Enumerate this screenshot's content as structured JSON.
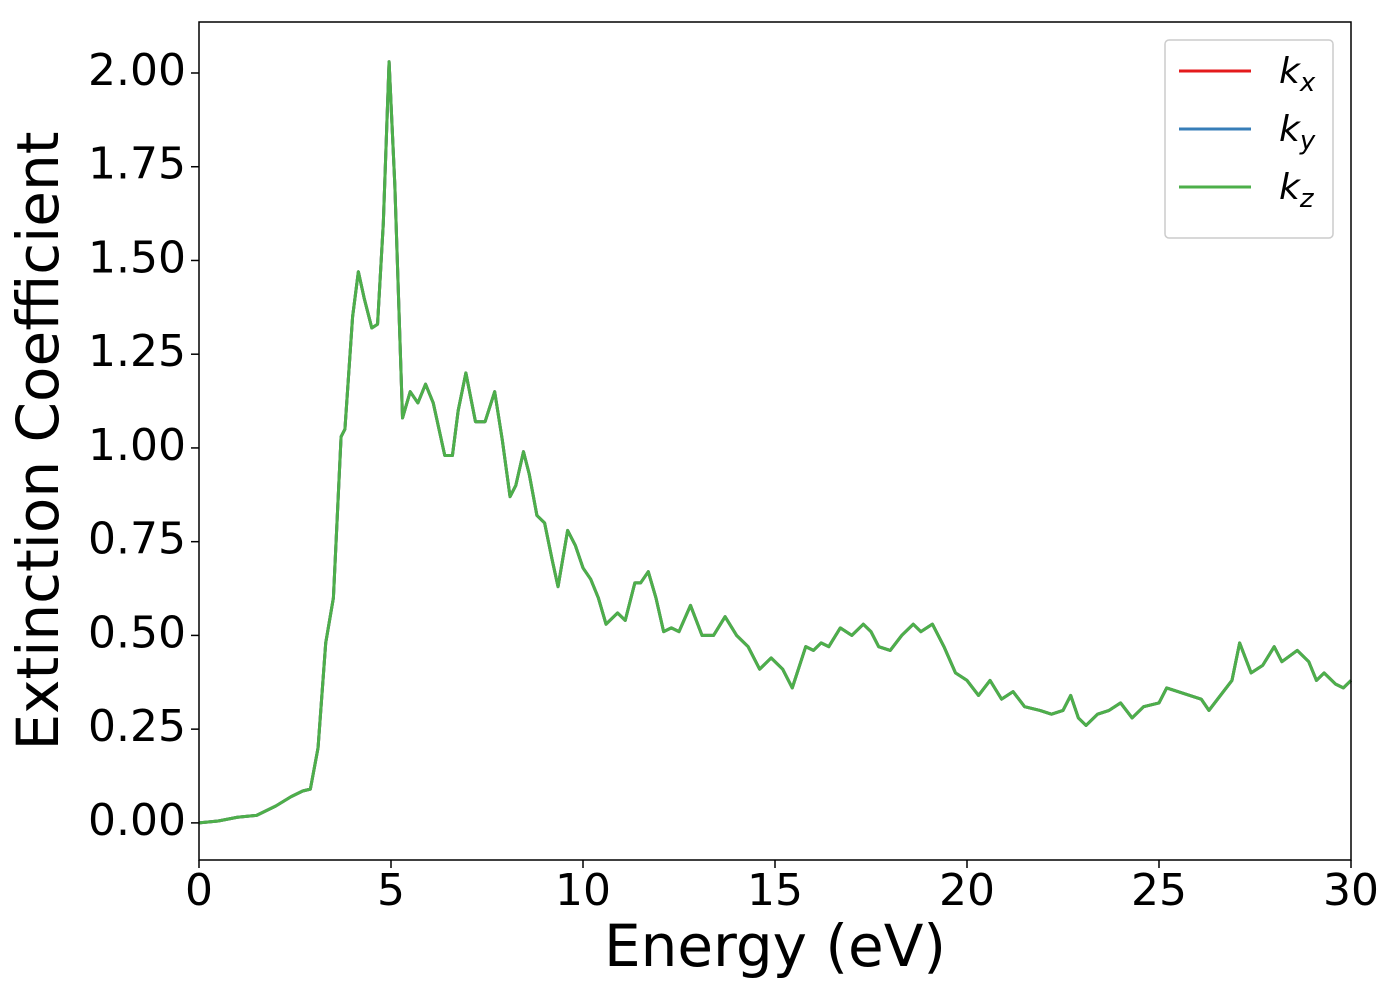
{
  "chart_data": {
    "type": "line",
    "xlabel": "Energy (eV)",
    "ylabel": "Extinction Coefficient",
    "x": [
      0,
      0.5,
      1.0,
      1.5,
      2.0,
      2.4,
      2.7,
      2.9,
      3.1,
      3.3,
      3.5,
      3.7,
      3.8,
      4.0,
      4.15,
      4.3,
      4.5,
      4.65,
      4.8,
      4.95,
      5.1,
      5.3,
      5.5,
      5.7,
      5.9,
      6.1,
      6.4,
      6.6,
      6.75,
      6.95,
      7.2,
      7.45,
      7.7,
      7.9,
      8.1,
      8.25,
      8.45,
      8.6,
      8.8,
      9.0,
      9.2,
      9.35,
      9.6,
      9.8,
      10.0,
      10.2,
      10.4,
      10.6,
      10.9,
      11.1,
      11.35,
      11.5,
      11.7,
      11.9,
      12.1,
      12.3,
      12.5,
      12.8,
      13.1,
      13.4,
      13.7,
      14.0,
      14.3,
      14.6,
      14.9,
      15.2,
      15.45,
      15.8,
      16.0,
      16.2,
      16.4,
      16.7,
      17.0,
      17.3,
      17.5,
      17.7,
      18.0,
      18.3,
      18.6,
      18.8,
      19.1,
      19.4,
      19.7,
      20.0,
      20.3,
      20.6,
      20.9,
      21.2,
      21.5,
      21.9,
      22.2,
      22.5,
      22.7,
      22.9,
      23.1,
      23.4,
      23.7,
      24.0,
      24.3,
      24.6,
      25.0,
      25.2,
      25.5,
      25.8,
      26.1,
      26.3,
      26.6,
      26.9,
      27.1,
      27.4,
      27.7,
      28.0,
      28.2,
      28.6,
      28.9,
      29.1,
      29.3,
      29.6,
      29.8,
      30.0
    ],
    "series": [
      {
        "name": "k_x",
        "color": "#e41a1c",
        "values": [
          0.0,
          0.005,
          0.015,
          0.02,
          0.045,
          0.07,
          0.085,
          0.09,
          0.2,
          0.48,
          0.6,
          1.03,
          1.05,
          1.35,
          1.47,
          1.4,
          1.32,
          1.33,
          1.6,
          2.03,
          1.7,
          1.08,
          1.15,
          1.12,
          1.17,
          1.12,
          0.98,
          0.98,
          1.1,
          1.2,
          1.07,
          1.07,
          1.15,
          1.02,
          0.87,
          0.9,
          0.99,
          0.93,
          0.82,
          0.8,
          0.7,
          0.63,
          0.78,
          0.74,
          0.68,
          0.65,
          0.6,
          0.53,
          0.56,
          0.54,
          0.64,
          0.64,
          0.67,
          0.6,
          0.51,
          0.52,
          0.51,
          0.58,
          0.5,
          0.5,
          0.55,
          0.5,
          0.47,
          0.41,
          0.44,
          0.41,
          0.36,
          0.47,
          0.46,
          0.48,
          0.47,
          0.52,
          0.5,
          0.53,
          0.51,
          0.47,
          0.46,
          0.5,
          0.53,
          0.51,
          0.53,
          0.47,
          0.4,
          0.38,
          0.34,
          0.38,
          0.33,
          0.35,
          0.31,
          0.3,
          0.29,
          0.3,
          0.34,
          0.28,
          0.26,
          0.29,
          0.3,
          0.32,
          0.28,
          0.31,
          0.32,
          0.36,
          0.35,
          0.34,
          0.33,
          0.3,
          0.34,
          0.38,
          0.48,
          0.4,
          0.42,
          0.47,
          0.43,
          0.46,
          0.43,
          0.38,
          0.4,
          0.37,
          0.36,
          0.38
        ]
      },
      {
        "name": "k_y",
        "color": "#377eb8",
        "values": [
          0.0,
          0.005,
          0.015,
          0.02,
          0.045,
          0.07,
          0.085,
          0.09,
          0.2,
          0.48,
          0.6,
          1.03,
          1.05,
          1.35,
          1.47,
          1.4,
          1.32,
          1.33,
          1.6,
          2.03,
          1.7,
          1.08,
          1.15,
          1.12,
          1.17,
          1.12,
          0.98,
          0.98,
          1.1,
          1.2,
          1.07,
          1.07,
          1.15,
          1.02,
          0.87,
          0.9,
          0.99,
          0.93,
          0.82,
          0.8,
          0.7,
          0.63,
          0.78,
          0.74,
          0.68,
          0.65,
          0.6,
          0.53,
          0.56,
          0.54,
          0.64,
          0.64,
          0.67,
          0.6,
          0.51,
          0.52,
          0.51,
          0.58,
          0.5,
          0.5,
          0.55,
          0.5,
          0.47,
          0.41,
          0.44,
          0.41,
          0.36,
          0.47,
          0.46,
          0.48,
          0.47,
          0.52,
          0.5,
          0.53,
          0.51,
          0.47,
          0.46,
          0.5,
          0.53,
          0.51,
          0.53,
          0.47,
          0.4,
          0.38,
          0.34,
          0.38,
          0.33,
          0.35,
          0.31,
          0.3,
          0.29,
          0.3,
          0.34,
          0.28,
          0.26,
          0.29,
          0.3,
          0.32,
          0.28,
          0.31,
          0.32,
          0.36,
          0.35,
          0.34,
          0.33,
          0.3,
          0.34,
          0.38,
          0.48,
          0.4,
          0.42,
          0.47,
          0.43,
          0.46,
          0.43,
          0.38,
          0.4,
          0.37,
          0.36,
          0.38
        ]
      },
      {
        "name": "k_z",
        "color": "#4daf4a",
        "values": [
          0.0,
          0.005,
          0.015,
          0.02,
          0.045,
          0.07,
          0.085,
          0.09,
          0.2,
          0.48,
          0.6,
          1.03,
          1.05,
          1.35,
          1.47,
          1.4,
          1.32,
          1.33,
          1.6,
          2.03,
          1.7,
          1.08,
          1.15,
          1.12,
          1.17,
          1.12,
          0.98,
          0.98,
          1.1,
          1.2,
          1.07,
          1.07,
          1.15,
          1.02,
          0.87,
          0.9,
          0.99,
          0.93,
          0.82,
          0.8,
          0.7,
          0.63,
          0.78,
          0.74,
          0.68,
          0.65,
          0.6,
          0.53,
          0.56,
          0.54,
          0.64,
          0.64,
          0.67,
          0.6,
          0.51,
          0.52,
          0.51,
          0.58,
          0.5,
          0.5,
          0.55,
          0.5,
          0.47,
          0.41,
          0.44,
          0.41,
          0.36,
          0.47,
          0.46,
          0.48,
          0.47,
          0.52,
          0.5,
          0.53,
          0.51,
          0.47,
          0.46,
          0.5,
          0.53,
          0.51,
          0.53,
          0.47,
          0.4,
          0.38,
          0.34,
          0.38,
          0.33,
          0.35,
          0.31,
          0.3,
          0.29,
          0.3,
          0.34,
          0.28,
          0.26,
          0.29,
          0.3,
          0.32,
          0.28,
          0.31,
          0.32,
          0.36,
          0.35,
          0.34,
          0.33,
          0.3,
          0.34,
          0.38,
          0.48,
          0.4,
          0.42,
          0.47,
          0.43,
          0.46,
          0.43,
          0.38,
          0.4,
          0.37,
          0.36,
          0.38
        ]
      }
    ],
    "xlim": [
      0,
      30
    ],
    "xticks": [
      0,
      5,
      10,
      15,
      20,
      25,
      30
    ],
    "ylim": [
      -0.099,
      2.136
    ],
    "yticks": [
      {
        "value": 0,
        "label": "0.00"
      },
      {
        "value": 0.25,
        "label": "0.25"
      },
      {
        "value": 0.5,
        "label": "0.50"
      },
      {
        "value": 0.75,
        "label": "0.75"
      },
      {
        "value": 1.0,
        "label": "1.00"
      },
      {
        "value": 1.25,
        "label": "1.25"
      },
      {
        "value": 1.5,
        "label": "1.50"
      },
      {
        "value": 1.75,
        "label": "1.75"
      },
      {
        "value": 2.0,
        "label": "2.00"
      }
    ],
    "legend": "upper right",
    "grid": false
  }
}
